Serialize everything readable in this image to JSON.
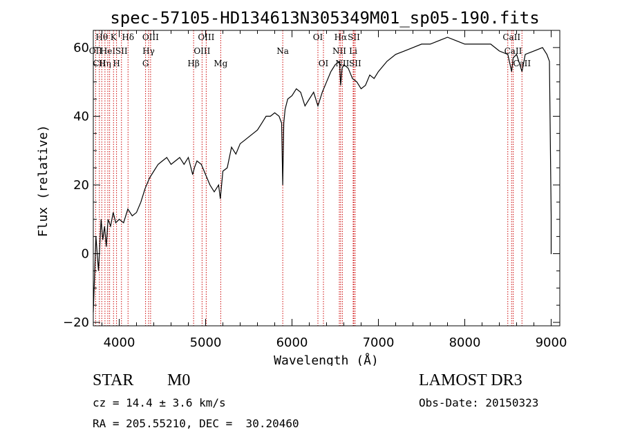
{
  "chart_data": {
    "type": "line",
    "title": "spec-57105-HD134613N305349M01_sp05-190.fits",
    "xlabel": "Wavelength (Å)",
    "ylabel": "Flux (relative)",
    "xlim": [
      3700,
      9100
    ],
    "ylim": [
      -21,
      65
    ],
    "x_ticks": [
      4000,
      5000,
      6000,
      7000,
      8000,
      9000
    ],
    "y_ticks": [
      -20,
      0,
      20,
      40,
      60
    ],
    "x_tick_labels": [
      "4000",
      "5000",
      "6000",
      "7000",
      "8000",
      "9000"
    ],
    "y_tick_labels": [
      "−20",
      "0",
      "20",
      "40",
      "60"
    ],
    "grid": false,
    "series": [
      {
        "color": "#000000",
        "x": [
          3700,
          3730,
          3760,
          3790,
          3810,
          3830,
          3850,
          3870,
          3900,
          3930,
          3960,
          4000,
          4050,
          4100,
          4150,
          4200,
          4250,
          4300,
          4350,
          4400,
          4450,
          4500,
          4550,
          4600,
          4650,
          4700,
          4750,
          4800,
          4850,
          4870,
          4900,
          4950,
          5000,
          5050,
          5100,
          5150,
          5170,
          5200,
          5250,
          5300,
          5350,
          5400,
          5450,
          5500,
          5550,
          5600,
          5650,
          5700,
          5750,
          5800,
          5850,
          5880,
          5893,
          5905,
          5920,
          5950,
          6000,
          6050,
          6100,
          6150,
          6200,
          6250,
          6300,
          6350,
          6400,
          6450,
          6500,
          6550,
          6563,
          6580,
          6600,
          6650,
          6700,
          6750,
          6800,
          6850,
          6900,
          6950,
          7000,
          7100,
          7200,
          7300,
          7400,
          7500,
          7600,
          7700,
          7800,
          7900,
          8000,
          8100,
          8200,
          8300,
          8400,
          8498,
          8542,
          8560,
          8600,
          8662,
          8700,
          8800,
          8900,
          8950,
          8980,
          9000,
          9000,
          9005
        ],
        "y": [
          -17,
          5,
          -5,
          10,
          4,
          8,
          2,
          10,
          8,
          12,
          9,
          10,
          9,
          13,
          11,
          12,
          15,
          19,
          22,
          24,
          26,
          27,
          28,
          26,
          27,
          28,
          26,
          28,
          23,
          25,
          27,
          26,
          23,
          20,
          18,
          20,
          16,
          24,
          25,
          31,
          29,
          32,
          33,
          34,
          35,
          36,
          38,
          40,
          40,
          41,
          40,
          38,
          20,
          38,
          42,
          45,
          46,
          48,
          47,
          43,
          45,
          47,
          43,
          47,
          50,
          53,
          55,
          56,
          49,
          54,
          55,
          54,
          51,
          50,
          48,
          49,
          52,
          51,
          53,
          56,
          58,
          59,
          60,
          61,
          61,
          62,
          63,
          62,
          61,
          61,
          61,
          61,
          59,
          58,
          53,
          57,
          58,
          53,
          58,
          59,
          60,
          58,
          56,
          11,
          0,
          0
        ]
      }
    ],
    "line_markers": [
      {
        "wavelength": 3727,
        "labels": [
          "OII"
        ],
        "level": 2
      },
      {
        "wavelength": 3770,
        "labels": [
          "CII"
        ],
        "level": 3
      },
      {
        "wavelength": 3798,
        "labels": [
          "Hθ"
        ],
        "level": 1
      },
      {
        "wavelength": 3835,
        "labels": [
          "Hη"
        ],
        "level": 3
      },
      {
        "wavelength": 3868,
        "labels": [
          "HeI"
        ],
        "level": 2
      },
      {
        "wavelength": 3889,
        "labels": [],
        "level": 0
      },
      {
        "wavelength": 3934,
        "labels": [
          "K"
        ],
        "level": 1
      },
      {
        "wavelength": 3969,
        "labels": [
          "H"
        ],
        "level": 3
      },
      {
        "wavelength": 4026,
        "labels": [
          "SII"
        ],
        "level": 2
      },
      {
        "wavelength": 4102,
        "labels": [
          "Hδ"
        ],
        "level": 1
      },
      {
        "wavelength": 4305,
        "labels": [
          "G"
        ],
        "level": 3
      },
      {
        "wavelength": 4340,
        "labels": [
          "Hγ"
        ],
        "level": 2
      },
      {
        "wavelength": 4363,
        "labels": [
          "OIII"
        ],
        "level": 1
      },
      {
        "wavelength": 4861,
        "labels": [
          "Hβ"
        ],
        "level": 3
      },
      {
        "wavelength": 4959,
        "labels": [
          "OIII"
        ],
        "level": 2
      },
      {
        "wavelength": 5007,
        "labels": [
          "OIII"
        ],
        "level": 1
      },
      {
        "wavelength": 5175,
        "labels": [
          "Mg"
        ],
        "level": 3
      },
      {
        "wavelength": 5893,
        "labels": [
          "Na"
        ],
        "level": 2
      },
      {
        "wavelength": 6300,
        "labels": [
          "OI"
        ],
        "level": 1
      },
      {
        "wavelength": 6364,
        "labels": [
          "OI"
        ],
        "level": 3
      },
      {
        "wavelength": 6548,
        "labels": [
          "NII"
        ],
        "level": 2
      },
      {
        "wavelength": 6563,
        "labels": [
          "Hα"
        ],
        "level": 1
      },
      {
        "wavelength": 6583,
        "labels": [
          "NII"
        ],
        "level": 3
      },
      {
        "wavelength": 6708,
        "labels": [
          "Li"
        ],
        "level": 2
      },
      {
        "wavelength": 6716,
        "labels": [
          "SII"
        ],
        "level": 1
      },
      {
        "wavelength": 6731,
        "labels": [
          "SII"
        ],
        "level": 3
      },
      {
        "wavelength": 8498,
        "labels": [],
        "level": 0
      },
      {
        "wavelength": 8542,
        "labels": [
          "CaII"
        ],
        "level": 1
      },
      {
        "wavelength": 8560,
        "labels": [
          "CaII"
        ],
        "level": 2
      },
      {
        "wavelength": 8662,
        "labels": [
          "CaII"
        ],
        "level": 3
      }
    ]
  },
  "info": {
    "object_class": "STAR",
    "subclass": "M0",
    "survey": "LAMOST DR3",
    "redshift": "cz = 14.4 ± 3.6 km/s",
    "obs_date": "Obs-Date: 20150323",
    "coords": "RA = 205.55210, DEC =  30.20460"
  },
  "colors": {
    "spectrum": "#000000",
    "marker_line": "#cc0000",
    "axes": "#000000"
  }
}
